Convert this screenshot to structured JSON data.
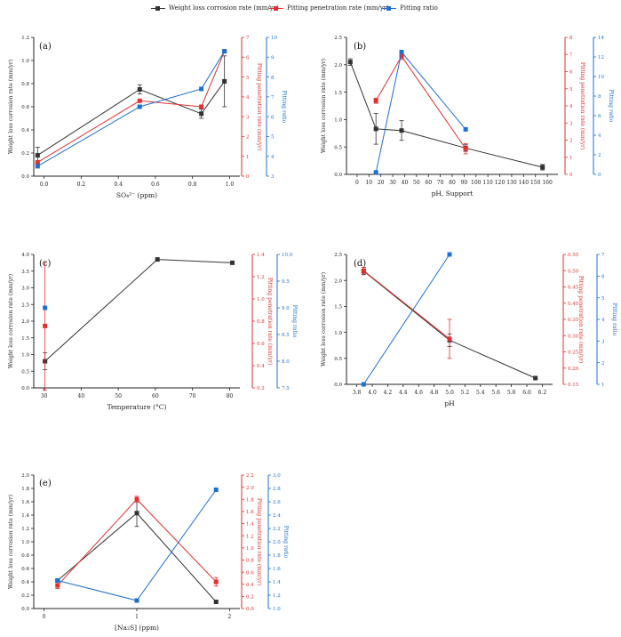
{
  "legend": {
    "items": [
      {
        "label": "Weight loss corrosion rate (mm/yr)",
        "color": "#333333"
      },
      {
        "label": "Pitting penetration rate (mm/yr)",
        "color": "#e03030"
      },
      {
        "label": "Pitting ratio",
        "color": "#1f6fd1"
      }
    ]
  },
  "chart_data": [
    {
      "panel_label": "(a)",
      "type": "line",
      "xlabel": "SO₄²⁻ (ppm)",
      "x_ticks": [
        "0.0",
        "0.2",
        "0.4",
        "0.6",
        "0.8",
        "1.0"
      ],
      "ylabel_left": "Weight loss corrosion rate (mm/yr)",
      "ylabel_right1": "Pitting penetration rate (mm/yr)",
      "ylabel_right2": "Pitting ratio",
      "xlim": [
        -0.02,
        1.05
      ],
      "series": [
        {
          "name": "Weight loss corrosion rate (mm/yr)",
          "color": "#333333",
          "axis": "left",
          "ylim": [
            0,
            1.2
          ],
          "ticks": [
            "0.0",
            "0.2",
            "0.4",
            "0.6",
            "0.8",
            "1.0",
            "1.2"
          ],
          "x": [
            0.0,
            0.53,
            0.85,
            0.97
          ],
          "y": [
            0.18,
            0.75,
            0.54,
            0.82
          ],
          "err": [
            0.07,
            0.04,
            0.04,
            0.22
          ]
        },
        {
          "name": "Pitting penetration rate (mm/yr)",
          "color": "#e03030",
          "axis": "right1",
          "ylim": [
            0,
            7
          ],
          "ticks": [
            "0",
            "1",
            "2",
            "3",
            "4",
            "5",
            "6",
            "7"
          ],
          "x": [
            0.0,
            0.53,
            0.85,
            0.97
          ],
          "y": [
            0.7,
            3.8,
            3.5,
            6.3
          ],
          "err": [
            0,
            0,
            0,
            0
          ]
        },
        {
          "name": "Pitting ratio",
          "color": "#1f6fd1",
          "axis": "right2",
          "ylim": [
            3,
            10
          ],
          "ticks": [
            "3",
            "4",
            "5",
            "6",
            "7",
            "8",
            "9",
            "10"
          ],
          "x": [
            0.0,
            0.53,
            0.85,
            0.97
          ],
          "y": [
            3.5,
            6.5,
            7.4,
            9.3
          ],
          "err": [
            0,
            0,
            0,
            0
          ]
        }
      ]
    },
    {
      "panel_label": "(b)",
      "type": "line",
      "xlabel": "pH, Support",
      "x_ticks": [
        "0",
        "10",
        "20",
        "30",
        "40",
        "50",
        "60",
        "70",
        "80",
        "90",
        "100",
        "110",
        "120",
        "130",
        "140",
        "150",
        "160"
      ],
      "ylabel_left": "Weight loss corrosion rate (mm/yr)",
      "ylabel_right1": "Pitting penetration rate (mm/yr)",
      "ylabel_right2": "Pitting ratio",
      "xlim": [
        -3,
        162
      ],
      "series": [
        {
          "name": "Weight loss corrosion rate (mm/yr)",
          "color": "#333333",
          "axis": "left",
          "ylim": [
            0,
            2.5
          ],
          "ticks": [
            "0.0",
            "0.5",
            "1.0",
            "1.5",
            "2.0",
            "2.5"
          ],
          "x": [
            0,
            20,
            40,
            90,
            150
          ],
          "y": [
            2.05,
            0.83,
            0.8,
            0.48,
            0.13
          ],
          "err": [
            0.06,
            0.28,
            0.18,
            0.06,
            0.05
          ]
        },
        {
          "name": "Pitting penetration rate (mm/yr)",
          "color": "#e03030",
          "axis": "right1",
          "ylim": [
            0,
            8
          ],
          "ticks": [
            "0",
            "1",
            "2",
            "3",
            "4",
            "5",
            "6",
            "7",
            "8"
          ],
          "x": [
            20,
            40,
            90
          ],
          "y": [
            4.3,
            6.9,
            1.5
          ],
          "err": [
            0.15,
            0.2,
            0.3
          ]
        },
        {
          "name": "Pitting ratio",
          "color": "#1f6fd1",
          "axis": "right2",
          "ylim": [
            0,
            14
          ],
          "ticks": [
            "0",
            "2",
            "4",
            "6",
            "8",
            "10",
            "12",
            "14"
          ],
          "x": [
            20,
            40,
            90
          ],
          "y": [
            0.2,
            12.5,
            4.6
          ],
          "err": [
            0,
            0,
            0
          ]
        }
      ]
    },
    {
      "panel_label": "(c)",
      "type": "line",
      "xlabel": "Temperature (°C)",
      "x_ticks": [
        "30",
        "40",
        "50",
        "60",
        "70",
        "80"
      ],
      "ylabel_left": "Weight loss corrosion rate (mm/yr)",
      "ylabel_right1": "Pitting penetration rate (mm/yr)",
      "ylabel_right2": "Pitting ratio",
      "xlim": [
        27,
        82
      ],
      "series": [
        {
          "name": "Weight loss corrosion rate (mm/yr)",
          "color": "#333333",
          "axis": "left",
          "ylim": [
            0,
            4.0
          ],
          "ticks": [
            "0.0",
            "0.5",
            "1.0",
            "1.5",
            "2.0",
            "2.5",
            "3.0",
            "3.5",
            "4.0"
          ],
          "x": [
            30,
            60,
            80
          ],
          "y": [
            0.8,
            3.85,
            3.75
          ],
          "err": [
            0.25,
            0,
            0
          ]
        },
        {
          "name": "Pitting penetration rate (mm/yr)",
          "color": "#e03030",
          "axis": "right1",
          "ylim": [
            0.2,
            1.45
          ],
          "ticks": [
            "0.2",
            "0.4",
            "0.6",
            "0.8",
            "1.0",
            "1.2",
            "1.4"
          ],
          "x": [
            30
          ],
          "y": [
            0.78
          ],
          "err": [
            0.6
          ]
        },
        {
          "name": "Pitting ratio",
          "color": "#1f6fd1",
          "axis": "right2",
          "ylim": [
            7.5,
            10.0
          ],
          "ticks": [
            "7.5",
            "8.0",
            "8.5",
            "9.0",
            "9.5",
            "10.0"
          ],
          "x": [
            30
          ],
          "y": [
            9.0
          ],
          "err": [
            0
          ]
        }
      ]
    },
    {
      "panel_label": "(d)",
      "type": "line",
      "xlabel": "pH",
      "x_ticks": [
        "3.8",
        "4.0",
        "4.2",
        "4.4",
        "4.6",
        "4.8",
        "5.0",
        "5.2",
        "5.4",
        "5.6",
        "5.8",
        "6.0",
        "6.2"
      ],
      "ylabel_left": "Weight loss corrosion rate (mm/yr)",
      "ylabel_right1": "Pitting penetration rate (mm/yr)",
      "ylabel_right2": "Pitting ratio",
      "xlim": [
        3.8,
        6.2
      ],
      "series": [
        {
          "name": "Weight loss corrosion rate (mm/yr)",
          "color": "#333333",
          "axis": "left",
          "ylim": [
            0,
            2.5
          ],
          "ticks": [
            "0.0",
            "0.5",
            "1.0",
            "1.5",
            "2.0",
            "2.5"
          ],
          "x": [
            4.0,
            5.0,
            6.0
          ],
          "y": [
            2.18,
            0.85,
            0.12
          ],
          "err": [
            0.07,
            0.12,
            0
          ]
        },
        {
          "name": "Pitting penetration rate (mm/yr)",
          "color": "#e03030",
          "axis": "right1",
          "ylim": [
            0.15,
            0.55
          ],
          "ticks": [
            "0.15",
            "0.20",
            "0.25",
            "0.30",
            "0.35",
            "0.40",
            "0.45",
            "0.50",
            "0.55"
          ],
          "x": [
            4.0,
            5.0
          ],
          "y": [
            0.5,
            0.29
          ],
          "err": [
            0.01,
            0.06
          ]
        },
        {
          "name": "Pitting ratio",
          "color": "#1f6fd1",
          "axis": "right2",
          "ylim": [
            1,
            7
          ],
          "ticks": [
            "1",
            "2",
            "3",
            "4",
            "5",
            "6",
            "7"
          ],
          "x": [
            4.0,
            5.0
          ],
          "y": [
            1.0,
            7.0
          ],
          "err": [
            0,
            0
          ]
        }
      ]
    },
    {
      "panel_label": "(e)",
      "type": "line",
      "xlabel": "[Na₂S] (ppm)",
      "x_ticks": [
        "0",
        "1",
        "2"
      ],
      "ylabel_left": "Weight loss corrosion rate (mm/yr)",
      "ylabel_right1": "Pitting penetration rate (mm/yr)",
      "ylabel_right2": "Pitting ratio",
      "xlim": [
        -0.3,
        2.3
      ],
      "series": [
        {
          "name": "Weight loss corrosion rate (mm/yr)",
          "color": "#333333",
          "axis": "left",
          "ylim": [
            0,
            2.0
          ],
          "ticks": [
            "0.0",
            "0.2",
            "0.4",
            "0.6",
            "0.8",
            "1.0",
            "1.2",
            "1.4",
            "1.6",
            "1.8",
            "2.0"
          ],
          "x": [
            0,
            1,
            2
          ],
          "y": [
            0.42,
            1.43,
            0.1
          ],
          "err": [
            0,
            0.2,
            0
          ]
        },
        {
          "name": "Pitting penetration rate (mm/yr)",
          "color": "#e03030",
          "axis": "right1",
          "ylim": [
            0,
            2.2
          ],
          "ticks": [
            "0.0",
            "0.2",
            "0.4",
            "0.6",
            "0.8",
            "1.0",
            "1.2",
            "1.4",
            "1.6",
            "1.8",
            "2.0",
            "2.2"
          ],
          "x": [
            0,
            1,
            2
          ],
          "y": [
            0.38,
            1.8,
            0.44
          ],
          "err": [
            0.05,
            0.05,
            0.07
          ]
        },
        {
          "name": "Pitting ratio",
          "color": "#1f6fd1",
          "axis": "right2",
          "ylim": [
            1.0,
            3.0
          ],
          "ticks": [
            "1.0",
            "1.2",
            "1.4",
            "1.6",
            "1.8",
            "2.0",
            "2.2",
            "2.4",
            "2.6",
            "2.8",
            "3.0"
          ],
          "x": [
            0,
            1,
            2
          ],
          "y": [
            1.42,
            1.12,
            2.78
          ],
          "err": [
            0,
            0,
            0
          ]
        }
      ]
    }
  ]
}
